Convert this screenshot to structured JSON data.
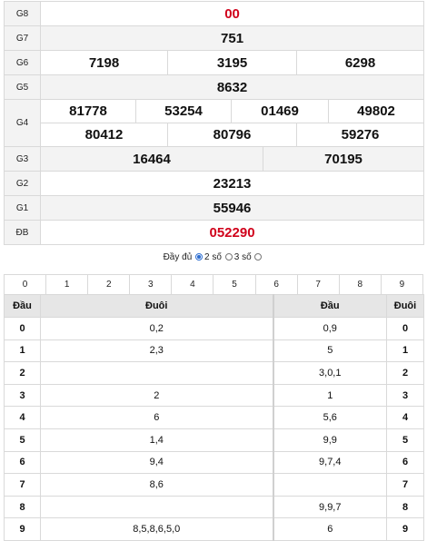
{
  "prizes": {
    "g8": {
      "label": "G8",
      "numbers": [
        "00"
      ]
    },
    "g7": {
      "label": "G7",
      "numbers": [
        "751"
      ]
    },
    "g6": {
      "label": "G6",
      "numbers": [
        "7198",
        "3195",
        "6298"
      ]
    },
    "g5": {
      "label": "G5",
      "numbers": [
        "8632"
      ]
    },
    "g4": {
      "label": "G4",
      "numbers": [
        "81778",
        "53254",
        "01469",
        "49802",
        "80412",
        "80796",
        "59276"
      ]
    },
    "g3": {
      "label": "G3",
      "numbers": [
        "16464",
        "70195"
      ]
    },
    "g2": {
      "label": "G2",
      "numbers": [
        "23213"
      ]
    },
    "g1": {
      "label": "G1",
      "numbers": [
        "55946"
      ]
    },
    "db": {
      "label": "ĐB",
      "numbers": [
        "052290"
      ]
    }
  },
  "options": {
    "full": "Đầy đủ",
    "two_digits": "2 số",
    "three_digits": "3 số",
    "selected": "two_digits"
  },
  "digit_tabs": [
    "0",
    "1",
    "2",
    "3",
    "4",
    "5",
    "6",
    "7",
    "8",
    "9"
  ],
  "loto": {
    "headers": {
      "dau": "Đầu",
      "duoi": "Đuôi",
      "dau2": "Đầu",
      "duoi2": "Đuôi"
    },
    "rows": [
      {
        "k1": "0",
        "v1": "0,2",
        "v2": "0,9",
        "k2": "0"
      },
      {
        "k1": "1",
        "v1": "2,3",
        "v2": "5",
        "k2": "1"
      },
      {
        "k1": "2",
        "v1": "",
        "v2": "3,0,1",
        "k2": "2"
      },
      {
        "k1": "3",
        "v1": "2",
        "v2": "1",
        "k2": "3"
      },
      {
        "k1": "4",
        "v1": "6",
        "v2": "5,6",
        "k2": "4"
      },
      {
        "k1": "5",
        "v1": "1,4",
        "v2": "9,9",
        "k2": "5"
      },
      {
        "k1": "6",
        "v1": "9,4",
        "v2": "9,7,4",
        "k2": "6"
      },
      {
        "k1": "7",
        "v1": "8,6",
        "v2": "",
        "k2": "7"
      },
      {
        "k1": "8",
        "v1": "",
        "v2": "9,9,7",
        "k2": "8"
      },
      {
        "k1": "9",
        "v1": "8,5,8,6,5,0",
        "v2": "6",
        "k2": "9"
      }
    ]
  },
  "colors": {
    "special": "#d0021b",
    "g8": "#d0021b",
    "radio_selected": "#2f6fd1"
  }
}
